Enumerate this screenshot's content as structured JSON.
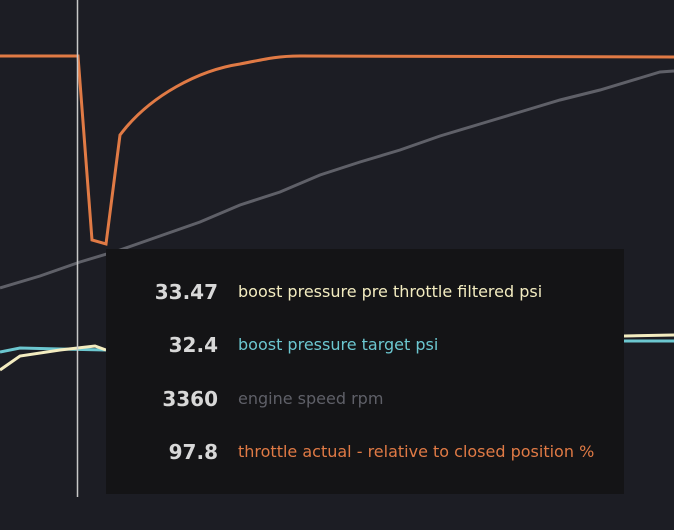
{
  "tooltip": {
    "rows": [
      {
        "value": 33.47,
        "label": "boost pressure pre throttle filtered psi"
      },
      {
        "value": 32.4,
        "label": "boost pressure target psi"
      },
      {
        "value": 3360,
        "label": "engine speed rpm"
      },
      {
        "value": 97.8,
        "label": "throttle actual - relative to closed position %"
      }
    ]
  }
}
